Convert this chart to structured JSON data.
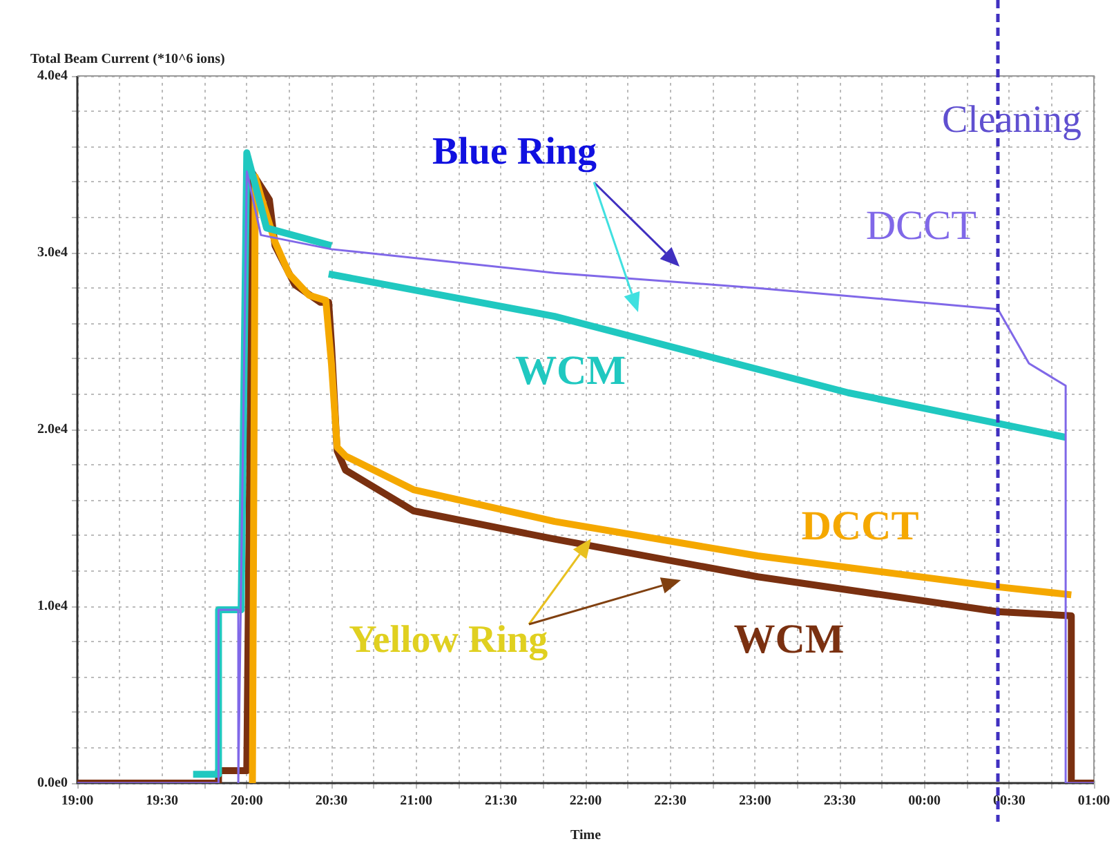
{
  "chart_data": {
    "type": "line",
    "ylabel": "Total Beam Current (*10^6 ions)",
    "xlabel": "Time",
    "xlim": [
      "--01-01T19:00",
      "--01-02T01:00"
    ],
    "ylim": [
      0,
      40000
    ],
    "xticks": [
      {
        "value": "--01-01T19:00",
        "label": "19:00"
      },
      {
        "value": "--01-01T19:15",
        "label": null
      },
      {
        "value": "--01-01T19:30",
        "label": "19:30"
      },
      {
        "value": "--01-01T19:45",
        "label": null
      },
      {
        "value": "--01-01T20:00",
        "label": "20:00"
      },
      {
        "value": "--01-01T20:15",
        "label": null
      },
      {
        "value": "--01-01T20:30",
        "label": "20:30"
      },
      {
        "value": "--01-01T20:45",
        "label": null
      },
      {
        "value": "--01-01T21:00",
        "label": "21:00"
      },
      {
        "value": "--01-01T21:15",
        "label": null
      },
      {
        "value": "--01-01T21:30",
        "label": "21:30"
      },
      {
        "value": "--01-01T21:45",
        "label": null
      },
      {
        "value": "--01-01T22:00",
        "label": "22:00"
      },
      {
        "value": "--01-01T22:15",
        "label": null
      },
      {
        "value": "--01-01T22:30",
        "label": "22:30"
      },
      {
        "value": "--01-01T22:45",
        "label": null
      },
      {
        "value": "--01-01T23:00",
        "label": "23:00"
      },
      {
        "value": "--01-01T23:15",
        "label": null
      },
      {
        "value": "--01-01T23:30",
        "label": "23:30"
      },
      {
        "value": "--01-01T23:45",
        "label": null
      },
      {
        "value": "--01-02T00:00",
        "label": "00:00"
      },
      {
        "value": "--01-02T00:15",
        "label": null
      },
      {
        "value": "--01-02T00:30",
        "label": "00:30"
      },
      {
        "value": "--01-02T00:45",
        "label": null
      },
      {
        "value": "--01-02T01:00",
        "label": "01:00"
      }
    ],
    "yticks": [
      {
        "value": 0,
        "label": "0.0e0"
      },
      {
        "value": 2000,
        "label": null
      },
      {
        "value": 4000,
        "label": null
      },
      {
        "value": 6000,
        "label": null
      },
      {
        "value": 8000,
        "label": null
      },
      {
        "value": 10000,
        "label": "1.0e4"
      },
      {
        "value": 12000,
        "label": null
      },
      {
        "value": 14000,
        "label": null
      },
      {
        "value": 16000,
        "label": null
      },
      {
        "value": 18000,
        "label": null
      },
      {
        "value": 20000,
        "label": "2.0e4"
      },
      {
        "value": 22000,
        "label": null
      },
      {
        "value": 24000,
        "label": null
      },
      {
        "value": 26000,
        "label": null
      },
      {
        "value": 28000,
        "label": null
      },
      {
        "value": 30000,
        "label": "3.0e4"
      },
      {
        "value": 32000,
        "label": null
      },
      {
        "value": 34000,
        "label": null
      },
      {
        "value": 36000,
        "label": null
      },
      {
        "value": 38000,
        "label": null
      },
      {
        "value": 40000,
        "label": "4.0e4"
      }
    ],
    "grid": true,
    "marker": "none",
    "line_style": "solid",
    "series": [
      {
        "name": "DCCT",
        "color": "#8068e8",
        "x": [
          "--01-01T19:00",
          "--01-01T19:50",
          "--01-01T19:50",
          "--01-01T19:57",
          "--01-01T19:57",
          "--01-01T20:00",
          "--01-01T20:05",
          "--01-01T20:30",
          "--01-01T21:49",
          "--01-01T23:01",
          "--01-02T00:26",
          "--01-02T00:37",
          "--01-02T00:50",
          "--01-02T00:50",
          "--01-02T01:00"
        ],
        "values": [
          0,
          0,
          9800,
          9800,
          0,
          34600,
          31000,
          30200,
          28860,
          28000,
          26810,
          23740,
          22480,
          0,
          0
        ]
      },
      {
        "name": "WCM",
        "color": "#20c8c0",
        "x": [
          "--01-01T19:41",
          "--01-01T19:50",
          "--01-01T19:50",
          "--01-01T19:58",
          "--01-01T20:00",
          "--01-01T20:07",
          "--01-01T20:30",
          "--01-01T20:29:30",
          "--01-01T20:29",
          "--01-01T21:49",
          "--01-01T23:33",
          "--01-02T00:26",
          "--01-02T00:50"
        ],
        "values": [
          500,
          500,
          9800,
          9800,
          35650,
          31400,
          30400,
          null,
          28800,
          26400,
          22080,
          20350,
          19560
        ]
      },
      {
        "name": "DCCT",
        "color": "#f5a800",
        "x": [
          "--01-01T20:02",
          "--01-01T20:03",
          "--01-01T20:05",
          "--01-01T20:10",
          "--01-01T20:15",
          "--01-01T20:22",
          "--01-01T20:28",
          "--01-01T20:30",
          "--01-01T20:32",
          "--01-01T20:35",
          "--01-01T20:59",
          "--01-01T21:49",
          "--01-01T23:01",
          "--01-02T00:26",
          "--01-02T00:52"
        ],
        "values": [
          0,
          34300,
          33200,
          30600,
          28800,
          27600,
          27300,
          23700,
          19000,
          18500,
          16600,
          14800,
          12850,
          11100,
          10650
        ]
      },
      {
        "name": "WCM",
        "color": "#7a3010",
        "x": [
          "--01-01T19:00",
          "--01-01T19:50",
          "--01-01T19:50",
          "--01-01T20:00",
          "--01-01T20:02",
          "--01-01T20:08",
          "--01-01T20:10",
          "--01-01T20:17",
          "--01-01T20:26",
          "--01-01T20:29",
          "--01-01T20:30",
          "--01-01T20:32",
          "--01-01T20:35",
          "--01-01T20:59",
          "--01-01T21:49",
          "--01-01T23:01",
          "--01-02T00:26",
          "--01-02T00:52",
          "--01-02T00:52",
          "--01-02T01:00"
        ],
        "values": [
          0,
          0,
          700,
          700,
          34500,
          33000,
          30400,
          28200,
          27200,
          27200,
          24800,
          18800,
          17700,
          15400,
          13800,
          11670,
          9700,
          9460,
          0,
          0
        ]
      }
    ],
    "ref_lines": [
      {
        "axis": "x",
        "value": "--01-02T00:26",
        "label": "Cleaning",
        "color": "#4030c0",
        "line_style": "dashed"
      }
    ],
    "annotations": [
      "Blue Ring",
      "Yellow Ring"
    ]
  }
}
